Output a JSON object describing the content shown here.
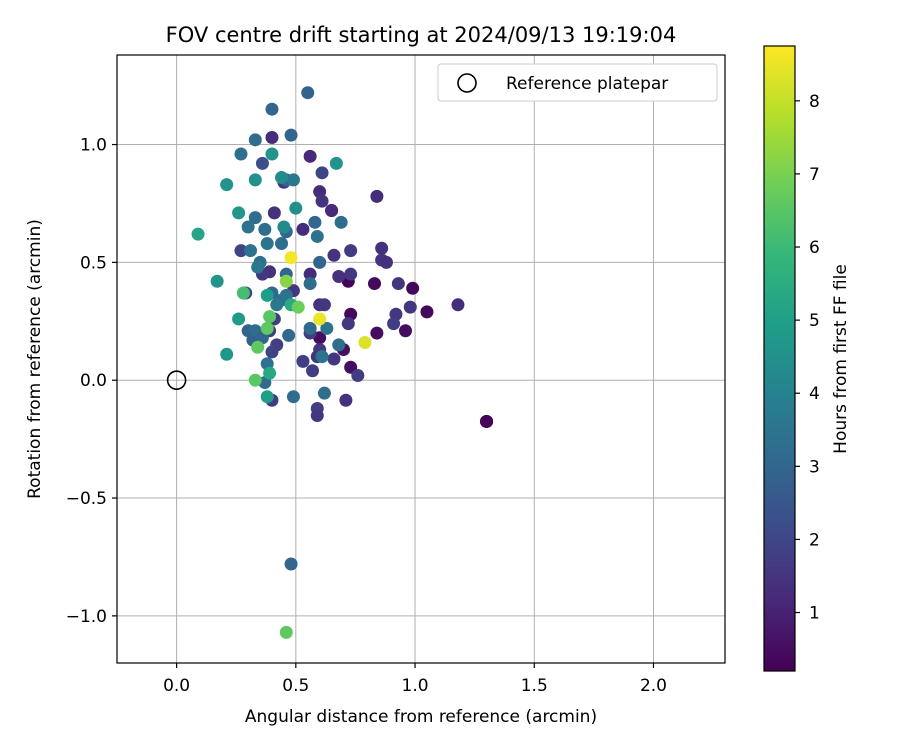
{
  "chart_data": {
    "type": "scatter",
    "title": "FOV centre drift starting at 2024/09/13 19:19:04",
    "xlabel": "Angular distance from reference (arcmin)",
    "ylabel": "Rotation from reference (arcmin)",
    "xlim": [
      -0.25,
      2.3
    ],
    "ylim": [
      -1.2,
      1.38
    ],
    "xticks": [
      0.0,
      0.5,
      1.0,
      1.5,
      2.0
    ],
    "xtick_labels": [
      "0.0",
      "0.5",
      "1.0",
      "1.5",
      "2.0"
    ],
    "yticks": [
      -1.0,
      -0.5,
      0.0,
      0.5,
      1.0
    ],
    "ytick_labels": [
      "−1.0",
      "−0.5",
      "0.0",
      "0.5",
      "1.0"
    ],
    "grid": true,
    "legend": {
      "placement": "top-right",
      "label": "Reference platepar"
    },
    "reference_point": {
      "x": 0.0,
      "y": 0.0
    },
    "colorbar": {
      "label": "Hours from first FF file",
      "min": 0.2,
      "max": 8.75,
      "ticks": [
        1,
        2,
        3,
        4,
        5,
        6,
        7,
        8
      ],
      "tick_labels": [
        "1",
        "2",
        "3",
        "4",
        "5",
        "6",
        "7",
        "8"
      ],
      "colormap": "viridis"
    },
    "colormap_stops": [
      "#440154",
      "#482878",
      "#3e4a89",
      "#31688e",
      "#26828e",
      "#1f9e89",
      "#35b779",
      "#6ece58",
      "#b5de2b",
      "#fde725"
    ],
    "series": [
      {
        "points": [
          {
            "x": 1.3,
            "y": -0.175,
            "c": 0.3
          },
          {
            "x": 1.3,
            "y": -0.175,
            "c": 0.3
          },
          {
            "x": 1.3,
            "y": -0.175,
            "c": 0.3
          },
          {
            "x": 0.65,
            "y": 0.72,
            "c": 0.3
          },
          {
            "x": 0.72,
            "y": 0.42,
            "c": 0.3
          },
          {
            "x": 0.83,
            "y": 0.41,
            "c": 0.4
          },
          {
            "x": 0.99,
            "y": 0.39,
            "c": 0.4
          },
          {
            "x": 1.05,
            "y": 0.29,
            "c": 0.4
          },
          {
            "x": 0.96,
            "y": 0.21,
            "c": 0.5
          },
          {
            "x": 0.84,
            "y": 0.2,
            "c": 0.5
          },
          {
            "x": 0.73,
            "y": 0.28,
            "c": 0.4
          },
          {
            "x": 0.6,
            "y": 0.18,
            "c": 0.5
          },
          {
            "x": 0.7,
            "y": 0.13,
            "c": 0.6
          },
          {
            "x": 0.73,
            "y": 0.055,
            "c": 0.5
          },
          {
            "x": 1.18,
            "y": 0.32,
            "c": 1.3
          },
          {
            "x": 0.84,
            "y": 0.78,
            "c": 1.3
          },
          {
            "x": 0.86,
            "y": 0.56,
            "c": 1.4
          },
          {
            "x": 0.86,
            "y": 0.51,
            "c": 1.5
          },
          {
            "x": 0.88,
            "y": 0.5,
            "c": 1.4
          },
          {
            "x": 0.93,
            "y": 0.41,
            "c": 1.5
          },
          {
            "x": 0.98,
            "y": 0.31,
            "c": 1.5
          },
          {
            "x": 0.92,
            "y": 0.28,
            "c": 1.6
          },
          {
            "x": 0.91,
            "y": 0.24,
            "c": 1.7
          },
          {
            "x": 0.73,
            "y": 0.45,
            "c": 1.6
          },
          {
            "x": 0.73,
            "y": 0.55,
            "c": 1.7
          },
          {
            "x": 0.66,
            "y": 0.53,
            "c": 1.5
          },
          {
            "x": 0.68,
            "y": 0.44,
            "c": 1.4
          },
          {
            "x": 0.72,
            "y": 0.24,
            "c": 1.6
          },
          {
            "x": 0.71,
            "y": -0.085,
            "c": 1.4
          },
          {
            "x": 0.76,
            "y": 0.02,
            "c": 1.7
          },
          {
            "x": 0.66,
            "y": 0.09,
            "c": 1.6
          },
          {
            "x": 0.65,
            "y": 0.72,
            "c": 1.2
          },
          {
            "x": 0.6,
            "y": 0.8,
            "c": 1.3
          },
          {
            "x": 0.61,
            "y": 0.76,
            "c": 1.5
          },
          {
            "x": 0.6,
            "y": 0.32,
            "c": 1.4
          },
          {
            "x": 0.62,
            "y": 0.32,
            "c": 1.6
          },
          {
            "x": 0.59,
            "y": 0.1,
            "c": 1.5
          },
          {
            "x": 0.57,
            "y": 0.04,
            "c": 1.8
          },
          {
            "x": 0.56,
            "y": 0.95,
            "c": 1.2
          },
          {
            "x": 0.61,
            "y": 0.88,
            "c": 2.0
          },
          {
            "x": 0.53,
            "y": 0.64,
            "c": 1.3
          },
          {
            "x": 0.56,
            "y": 0.45,
            "c": 1.3
          },
          {
            "x": 0.49,
            "y": 0.38,
            "c": 1.6
          },
          {
            "x": 0.45,
            "y": 0.84,
            "c": 1.6
          },
          {
            "x": 0.41,
            "y": 0.71,
            "c": 1.4
          },
          {
            "x": 0.4,
            "y": 1.03,
            "c": 1.3
          },
          {
            "x": 0.39,
            "y": 0.46,
            "c": 1.4
          },
          {
            "x": 0.36,
            "y": 0.45,
            "c": 1.6
          },
          {
            "x": 0.41,
            "y": 0.26,
            "c": 1.7
          },
          {
            "x": 0.39,
            "y": 0.21,
            "c": 1.7
          },
          {
            "x": 0.42,
            "y": 0.15,
            "c": 1.8
          },
          {
            "x": 0.4,
            "y": 0.12,
            "c": 1.9
          },
          {
            "x": 0.56,
            "y": 0.2,
            "c": 1.7
          },
          {
            "x": 0.6,
            "y": 0.13,
            "c": 1.6
          },
          {
            "x": 0.53,
            "y": 0.08,
            "c": 1.8
          },
          {
            "x": 0.59,
            "y": -0.12,
            "c": 1.8
          },
          {
            "x": 0.59,
            "y": -0.15,
            "c": 1.6
          },
          {
            "x": 0.4,
            "y": -0.085,
            "c": 1.7
          },
          {
            "x": 0.27,
            "y": 0.55,
            "c": 1.9
          },
          {
            "x": 0.29,
            "y": 0.37,
            "c": 2.0
          },
          {
            "x": 0.36,
            "y": 0.92,
            "c": 2.3
          },
          {
            "x": 0.55,
            "y": 1.22,
            "c": 2.9
          },
          {
            "x": 0.4,
            "y": 1.15,
            "c": 3.0
          },
          {
            "x": 0.48,
            "y": 1.04,
            "c": 3.0
          },
          {
            "x": 0.33,
            "y": 1.02,
            "c": 3.2
          },
          {
            "x": 0.27,
            "y": 0.96,
            "c": 3.3
          },
          {
            "x": 0.46,
            "y": 0.85,
            "c": 3.0
          },
          {
            "x": 0.49,
            "y": 0.85,
            "c": 3.6
          },
          {
            "x": 0.33,
            "y": 0.69,
            "c": 3.2
          },
          {
            "x": 0.37,
            "y": 0.64,
            "c": 3.3
          },
          {
            "x": 0.3,
            "y": 0.65,
            "c": 3.4
          },
          {
            "x": 0.46,
            "y": 0.63,
            "c": 3.0
          },
          {
            "x": 0.44,
            "y": 0.58,
            "c": 3.2
          },
          {
            "x": 0.38,
            "y": 0.58,
            "c": 3.5
          },
          {
            "x": 0.31,
            "y": 0.55,
            "c": 3.5
          },
          {
            "x": 0.35,
            "y": 0.5,
            "c": 3.3
          },
          {
            "x": 0.34,
            "y": 0.48,
            "c": 3.6
          },
          {
            "x": 0.46,
            "y": 0.45,
            "c": 3.0
          },
          {
            "x": 0.4,
            "y": 0.37,
            "c": 3.1
          },
          {
            "x": 0.44,
            "y": 0.34,
            "c": 3.3
          },
          {
            "x": 0.46,
            "y": 0.36,
            "c": 3.5
          },
          {
            "x": 0.42,
            "y": 0.32,
            "c": 3.6
          },
          {
            "x": 0.47,
            "y": 0.19,
            "c": 3.1
          },
          {
            "x": 0.3,
            "y": 0.21,
            "c": 2.9
          },
          {
            "x": 0.35,
            "y": 0.19,
            "c": 2.7
          },
          {
            "x": 0.32,
            "y": 0.17,
            "c": 2.8
          },
          {
            "x": 0.33,
            "y": 0.21,
            "c": 3.2
          },
          {
            "x": 0.36,
            "y": 0.18,
            "c": 3.0
          },
          {
            "x": 0.58,
            "y": 0.67,
            "c": 3.0
          },
          {
            "x": 0.59,
            "y": 0.61,
            "c": 3.4
          },
          {
            "x": 0.69,
            "y": 0.67,
            "c": 3.2
          },
          {
            "x": 0.6,
            "y": 0.5,
            "c": 3.0
          },
          {
            "x": 0.56,
            "y": 0.41,
            "c": 3.2
          },
          {
            "x": 0.56,
            "y": 0.22,
            "c": 3.1
          },
          {
            "x": 0.63,
            "y": 0.22,
            "c": 3.4
          },
          {
            "x": 0.68,
            "y": 0.15,
            "c": 3.3
          },
          {
            "x": 0.61,
            "y": 0.1,
            "c": 3.5
          },
          {
            "x": 0.62,
            "y": -0.055,
            "c": 3.3
          },
          {
            "x": 0.49,
            "y": -0.07,
            "c": 3.2
          },
          {
            "x": 0.37,
            "y": -0.01,
            "c": 3.2
          },
          {
            "x": 0.48,
            "y": -0.78,
            "c": 3.0
          },
          {
            "x": 0.38,
            "y": 0.07,
            "c": 3.4
          },
          {
            "x": 0.4,
            "y": 0.96,
            "c": 4.6
          },
          {
            "x": 0.67,
            "y": 0.92,
            "c": 4.6
          },
          {
            "x": 0.44,
            "y": 0.86,
            "c": 4.3
          },
          {
            "x": 0.33,
            "y": 0.85,
            "c": 4.5
          },
          {
            "x": 0.21,
            "y": 0.83,
            "c": 4.6
          },
          {
            "x": 0.5,
            "y": 0.73,
            "c": 4.4
          },
          {
            "x": 0.26,
            "y": 0.71,
            "c": 4.7
          },
          {
            "x": 0.45,
            "y": 0.65,
            "c": 4.3
          },
          {
            "x": 0.09,
            "y": 0.62,
            "c": 5.2
          },
          {
            "x": 0.17,
            "y": 0.42,
            "c": 4.6
          },
          {
            "x": 0.38,
            "y": 0.36,
            "c": 5.0
          },
          {
            "x": 0.48,
            "y": 0.32,
            "c": 5.4
          },
          {
            "x": 0.26,
            "y": 0.26,
            "c": 4.8
          },
          {
            "x": 0.21,
            "y": 0.11,
            "c": 4.7
          },
          {
            "x": 0.38,
            "y": -0.07,
            "c": 5.0
          },
          {
            "x": 0.39,
            "y": 0.03,
            "c": 5.3
          },
          {
            "x": 0.28,
            "y": 0.37,
            "c": 6.2
          },
          {
            "x": 0.39,
            "y": 0.27,
            "c": 6.5
          },
          {
            "x": 0.51,
            "y": 0.31,
            "c": 6.8
          },
          {
            "x": 0.38,
            "y": 0.22,
            "c": 6.6
          },
          {
            "x": 0.34,
            "y": 0.14,
            "c": 6.6
          },
          {
            "x": 0.33,
            "y": 0.0,
            "c": 6.5
          },
          {
            "x": 0.46,
            "y": -1.07,
            "c": 6.6
          },
          {
            "x": 0.46,
            "y": 0.42,
            "c": 7.2
          },
          {
            "x": 0.48,
            "y": 0.52,
            "c": 8.6
          },
          {
            "x": 0.6,
            "y": 0.26,
            "c": 8.5
          },
          {
            "x": 0.79,
            "y": 0.16,
            "c": 8.3
          }
        ]
      }
    ]
  }
}
